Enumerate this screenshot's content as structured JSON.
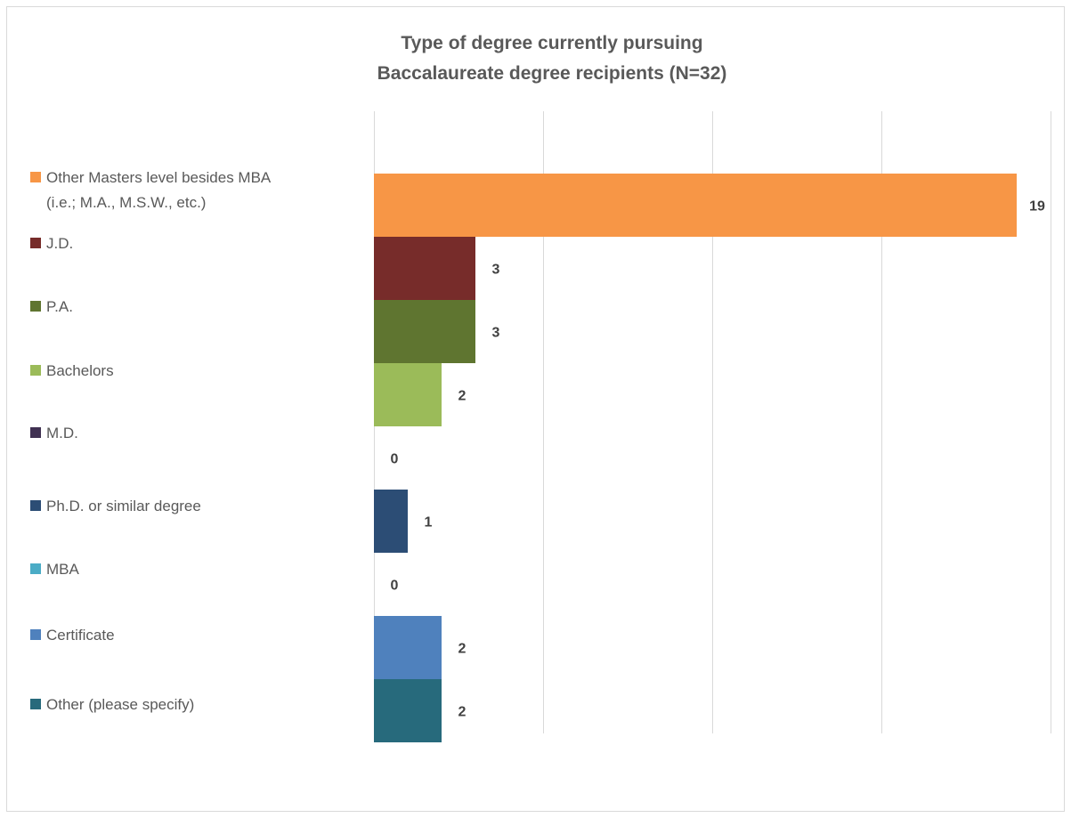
{
  "chart_data": {
    "type": "bar",
    "orientation": "horizontal",
    "title": "Type of degree  currently pursuing",
    "subtitle": "Baccalaureate degree recipients (N=32)",
    "xlim": [
      0,
      20
    ],
    "x_gridlines": [
      0,
      5,
      10,
      15,
      20
    ],
    "grid": true,
    "legend_position": "left",
    "series": [
      {
        "name": "Other Masters level besides MBA (i.e.; M.A., M.S.W., etc.)",
        "legend_lines": [
          "Other Masters level besides MBA",
          "(i.e.; M.A., M.S.W., etc.)"
        ],
        "value": 19,
        "label": "19",
        "color": "#F79646"
      },
      {
        "name": "J.D.",
        "legend_lines": [
          "J.D."
        ],
        "value": 3,
        "label": "3",
        "color": "#772C2A"
      },
      {
        "name": "P.A.",
        "legend_lines": [
          "P.A."
        ],
        "value": 3,
        "label": "3",
        "color": "#5F7530"
      },
      {
        "name": "Bachelors",
        "legend_lines": [
          "Bachelors"
        ],
        "value": 2,
        "label": "2",
        "color": "#9BBB59"
      },
      {
        "name": "M.D.",
        "legend_lines": [
          "M.D."
        ],
        "value": 0,
        "label": "0",
        "color": "#403152"
      },
      {
        "name": "Ph.D. or similar degree",
        "legend_lines": [
          "Ph.D. or similar degree"
        ],
        "value": 1,
        "label": "1",
        "color": "#2C4D75"
      },
      {
        "name": "MBA",
        "legend_lines": [
          "MBA"
        ],
        "value": 0,
        "label": "0",
        "color": "#4BACC6"
      },
      {
        "name": "Certificate",
        "legend_lines": [
          "Certificate"
        ],
        "value": 2,
        "label": "2",
        "color": "#4F81BD"
      },
      {
        "name": "Other (please specify)",
        "legend_lines": [
          "Other (please specify)"
        ],
        "value": 2,
        "label": "2",
        "color": "#276A7C"
      }
    ]
  }
}
